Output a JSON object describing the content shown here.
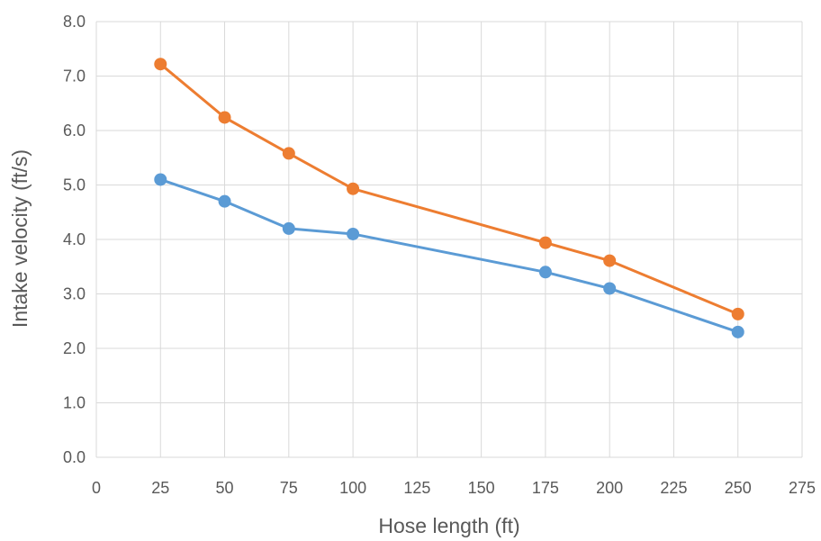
{
  "chart_data": {
    "type": "scatter",
    "xlabel": "Hose length (ft)",
    "ylabel": "Intake velocity (ft/s)",
    "xlim": [
      0,
      275
    ],
    "ylim": [
      0,
      8
    ],
    "x_ticks": [
      "0",
      "25",
      "50",
      "75",
      "100",
      "125",
      "150",
      "175",
      "200",
      "225",
      "250",
      "275"
    ],
    "y_ticks": [
      "0.0",
      "1.0",
      "2.0",
      "3.0",
      "4.0",
      "5.0",
      "6.0",
      "7.0",
      "8.0"
    ],
    "grid": true,
    "legend": "none",
    "series": [
      {
        "color": "#5b9bd5",
        "points": [
          [
            25,
            5.1
          ],
          [
            50,
            4.7
          ],
          [
            75,
            4.2
          ],
          [
            100,
            4.1
          ],
          [
            175,
            3.4
          ],
          [
            200,
            3.1
          ],
          [
            250,
            2.3
          ]
        ]
      },
      {
        "color": "#ed7d31",
        "points": [
          [
            25,
            7.22
          ],
          [
            50,
            6.24
          ],
          [
            75,
            5.58
          ],
          [
            100,
            4.93
          ],
          [
            175,
            3.94
          ],
          [
            200,
            3.61
          ],
          [
            250,
            2.63
          ]
        ]
      }
    ]
  }
}
